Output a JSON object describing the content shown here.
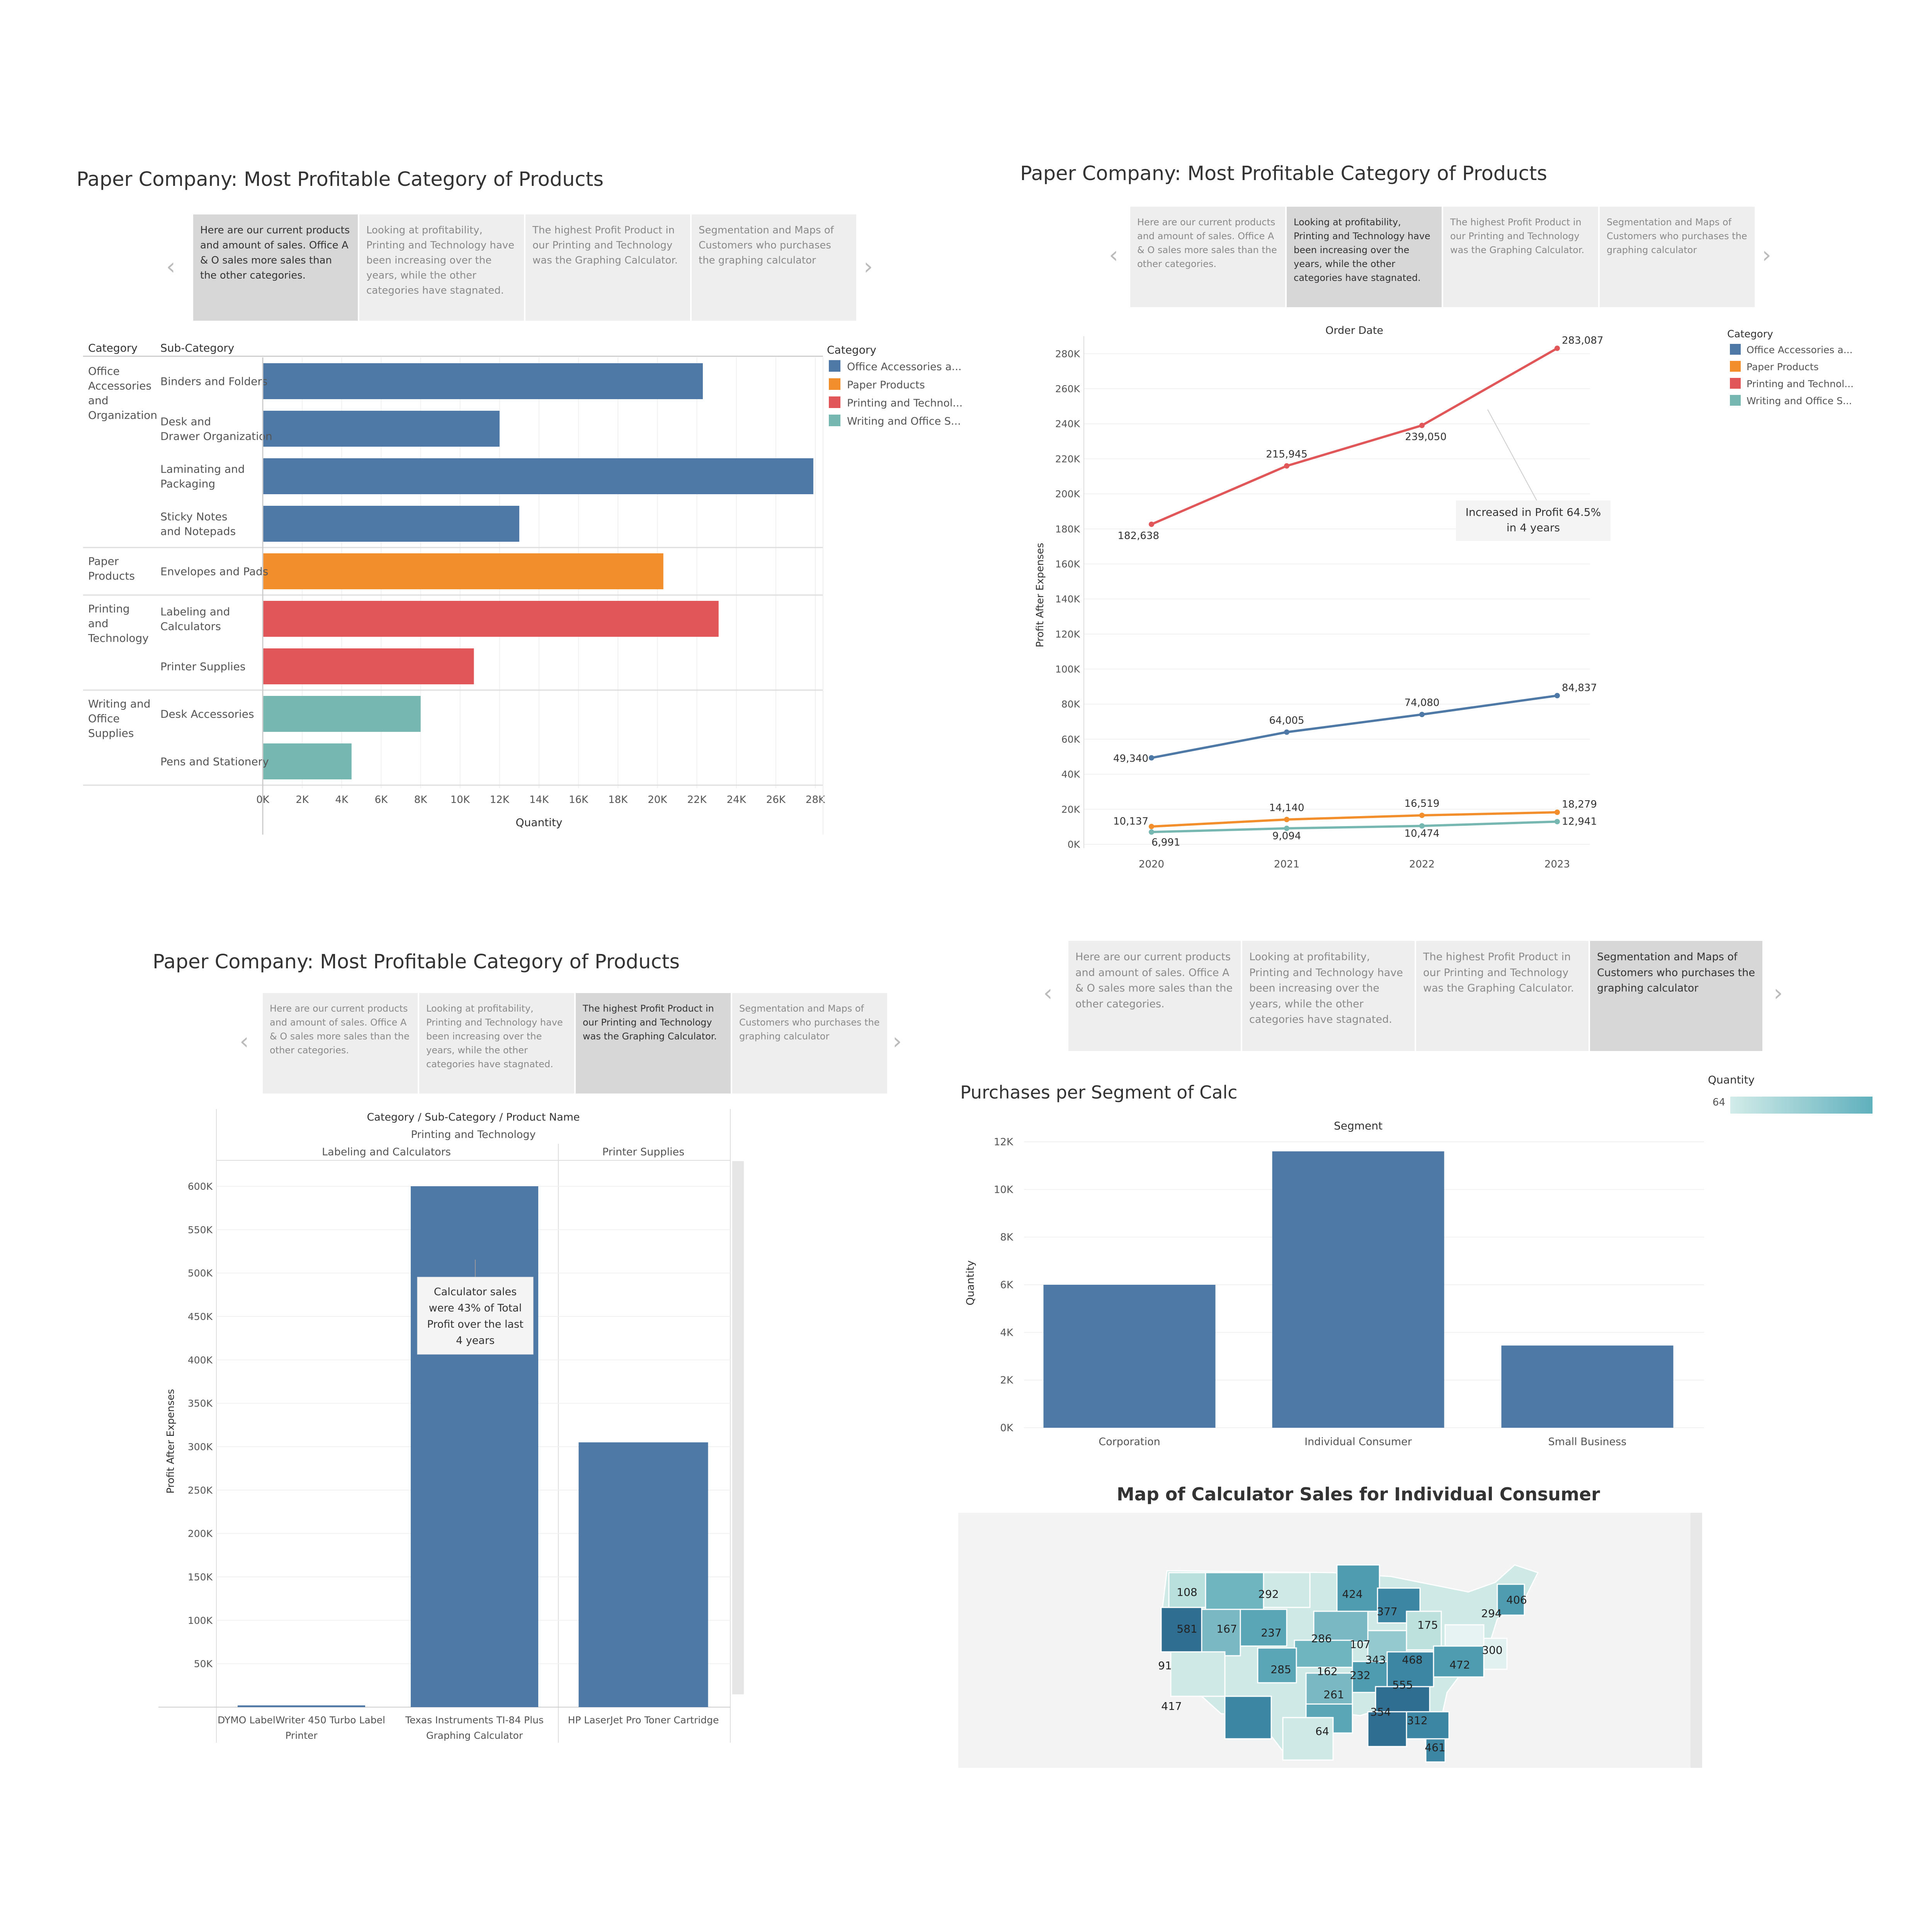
{
  "title": "Paper Company: Most Profitable Category of Products",
  "captions": [
    "Here are our current products and amount of sales. Office A & O sales more sales than the other categories.",
    "Looking at profitability, Printing and Technology have been increasing over the years, while the other categories have stagnated.",
    "The highest Profit Product in our Printing and Technology was the Graphing Calculator.",
    "Segmentation and Maps of Customers who purchases the graphing calculator"
  ],
  "colors": {
    "office": "#4e79a7",
    "paper": "#f28e2b",
    "printing": "#e15759",
    "writing": "#76b7b2"
  },
  "legend": {
    "title": "Category",
    "items": [
      {
        "label": "Office Accessories a...",
        "color": "#4e79a7"
      },
      {
        "label": "Paper Products",
        "color": "#f28e2b"
      },
      {
        "label": "Printing and Technol...",
        "color": "#e15759"
      },
      {
        "label": "Writing and Office S...",
        "color": "#76b7b2"
      }
    ]
  },
  "map_legend": {
    "title": "Quantity",
    "min_label": "64"
  },
  "chart_data": [
    {
      "type": "bar",
      "orientation": "horizontal",
      "header_category": "Category",
      "header_subcategory": "Sub-Category",
      "xlabel": "Quantity",
      "xlim": [
        0,
        28000
      ],
      "xticks": [
        "0K",
        "2K",
        "4K",
        "6K",
        "8K",
        "10K",
        "12K",
        "14K",
        "16K",
        "18K",
        "20K",
        "22K",
        "24K",
        "26K",
        "28K"
      ],
      "groups": [
        {
          "category": "Office Accessories and Organization",
          "color": "#4e79a7",
          "rows": [
            {
              "sub": "Binders and Folders",
              "value": 22300
            },
            {
              "sub": "Desk and Drawer Organization",
              "value": 12000
            },
            {
              "sub": "Laminating and Packaging",
              "value": 27900
            },
            {
              "sub": "Sticky Notes and Notepads",
              "value": 13000
            }
          ]
        },
        {
          "category": "Paper Products",
          "color": "#f28e2b",
          "rows": [
            {
              "sub": "Envelopes and Pads",
              "value": 20300
            }
          ]
        },
        {
          "category": "Printing and Technology",
          "color": "#e15759",
          "rows": [
            {
              "sub": "Labeling and Calculators",
              "value": 23100
            },
            {
              "sub": "Printer Supplies",
              "value": 10700
            }
          ]
        },
        {
          "category": "Writing and Office Supplies",
          "color": "#76b7b2",
          "rows": [
            {
              "sub": "Desk Accessories",
              "value": 8000
            },
            {
              "sub": "Pens and Stationery",
              "value": 4500
            }
          ]
        }
      ]
    },
    {
      "type": "line",
      "xlabel": "Order Date",
      "ylabel": "Profit After Expenses",
      "x": [
        "2020",
        "2021",
        "2022",
        "2023"
      ],
      "ylim": [
        0,
        290000
      ],
      "yticks": [
        "0K",
        "20K",
        "40K",
        "60K",
        "80K",
        "100K",
        "120K",
        "140K",
        "160K",
        "180K",
        "200K",
        "220K",
        "240K",
        "260K",
        "280K"
      ],
      "series": [
        {
          "name": "Printing and Technology",
          "color": "#e15759",
          "values": [
            182638,
            215945,
            239050,
            283087
          ],
          "labels": [
            "182,638",
            "215,945",
            "239,050",
            "283,087"
          ]
        },
        {
          "name": "Office Accessories and Organization",
          "color": "#4e79a7",
          "values": [
            49340,
            64005,
            74080,
            84837
          ],
          "labels": [
            "49,340",
            "64,005",
            "74,080",
            "84,837"
          ]
        },
        {
          "name": "Paper Products",
          "color": "#f28e2b",
          "values": [
            10137,
            14140,
            16519,
            18279
          ],
          "labels": [
            "10,137",
            "14,140",
            "16,519",
            "18,279"
          ]
        },
        {
          "name": "Writing and Office Supplies",
          "color": "#76b7b2",
          "values": [
            6991,
            9094,
            10474,
            12941
          ],
          "labels": [
            "6,991",
            "9,094",
            "10,474",
            "12,941"
          ]
        }
      ],
      "annotation": [
        "Increased in Profit 64.5%",
        "in 4 years"
      ]
    },
    {
      "type": "bar",
      "header_title": "Category / Sub-Category / Product Name",
      "header_category": "Printing and Technology",
      "header_subcats": [
        "Labeling and Calculators",
        "Printer Supplies"
      ],
      "ylabel": "Profit After Expenses",
      "ylim": [
        0,
        620000
      ],
      "yticks": [
        "50K",
        "100K",
        "150K",
        "200K",
        "250K",
        "300K",
        "350K",
        "400K",
        "450K",
        "500K",
        "550K",
        "600K"
      ],
      "categories": [
        [
          "DYMO LabelWriter 450 Turbo Label",
          "Printer"
        ],
        [
          "Texas Instruments TI-84 Plus",
          "Graphing Calculator"
        ],
        [
          "HP LaserJet Pro Toner Cartridge"
        ]
      ],
      "values": [
        2000,
        600000,
        305000
      ],
      "color": "#4e79a7",
      "annotation": [
        "Calculator sales",
        "were 43% of Total",
        "Profit over the last",
        "4 years"
      ]
    },
    {
      "type": "bar",
      "title": "Purchases per Segment of Calc",
      "xlabel": "Segment",
      "ylabel": "Quantity",
      "categories": [
        "Corporation",
        "Individual Consumer",
        "Small Business"
      ],
      "values": [
        6000,
        11600,
        3450
      ],
      "ylim": [
        0,
        12000
      ],
      "yticks": [
        "0K",
        "2K",
        "4K",
        "6K",
        "8K",
        "10K",
        "12K"
      ],
      "color": "#4e79a7"
    }
  ],
  "map": {
    "title": "Map of Calculator Sales for Individual Consumer",
    "labels": [
      "108",
      "292",
      "424",
      "406",
      "581",
      "167",
      "377",
      "175",
      "294",
      "237",
      "286",
      "107",
      "343",
      "468",
      "300",
      "472",
      "91",
      "285",
      "162",
      "232",
      "555",
      "417",
      "261",
      "354",
      "312",
      "64",
      "461"
    ]
  }
}
